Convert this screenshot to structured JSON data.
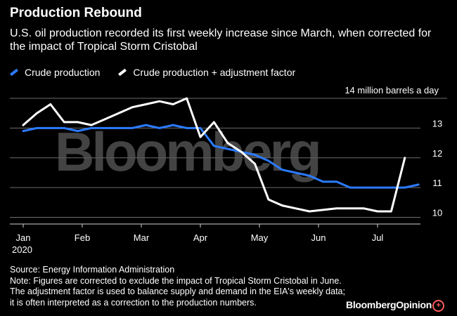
{
  "header": {
    "title": "Production Rebound",
    "subtitle": "U.S. oil production recorded its first weekly increase since March, when corrected for the impact of Tropical Storm Cristobal"
  },
  "watermark": "Bloomberg",
  "chart_data": {
    "type": "line",
    "unit_label": "14 million barrels a day",
    "x_ticks": [
      "Jan",
      "Feb",
      "Mar",
      "Apr",
      "May",
      "Jun",
      "Jul"
    ],
    "x_year": "2020",
    "y_ticks": [
      "10",
      "11",
      "12",
      "13"
    ],
    "ylim": [
      9.8,
      14
    ],
    "grid": true,
    "legend_position": "top-left",
    "series": [
      {
        "name": "Crude production",
        "color": "#2b7bff",
        "values": [
          12.9,
          13.0,
          13.0,
          13.0,
          12.9,
          13.0,
          13.0,
          13.0,
          13.0,
          13.1,
          13.0,
          13.1,
          13.0,
          13.0,
          12.4,
          12.3,
          12.2,
          12.1,
          11.9,
          11.6,
          11.5,
          11.4,
          11.2,
          11.2,
          11.0,
          11.0,
          11.0,
          11.0,
          11.0,
          11.1
        ]
      },
      {
        "name": "Crude production + adjustment factor",
        "color": "#ffffff",
        "values": [
          13.1,
          13.5,
          13.8,
          13.2,
          13.2,
          13.1,
          13.3,
          13.5,
          13.7,
          13.8,
          13.9,
          13.8,
          14.0,
          12.7,
          13.2,
          12.5,
          12.2,
          11.8,
          10.6,
          10.4,
          10.3,
          10.2,
          10.25,
          10.3,
          10.3,
          10.3,
          10.2,
          10.2,
          12.0
        ]
      }
    ]
  },
  "footnotes": {
    "source": "Source: Energy Information Administration",
    "note": "Note: Figures are corrected to exclude the impact of Tropical Storm Cristobal in June. The adjustment factor is used to balance supply and demand in the EIA's weekly data; it is often interpreted as a correction to the production numbers."
  },
  "brand": {
    "text": "BloombergOpinion",
    "icon": "plus-circle-icon",
    "icon_color": "#ff5a5a"
  }
}
